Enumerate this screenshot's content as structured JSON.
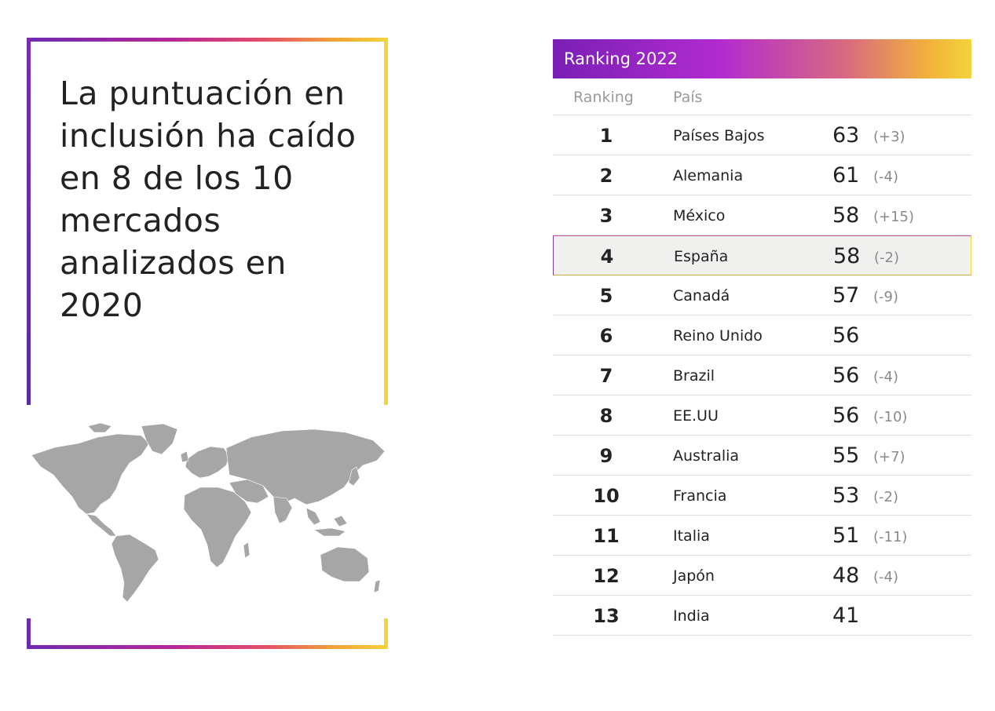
{
  "headline": "La puntuación en inclusión ha caído en 8 de los 10 mercados analizados en 2020",
  "table": {
    "title": "Ranking 2022",
    "col_rank": "Ranking",
    "col_country": "País",
    "rows": [
      {
        "rank": "1",
        "country": "Países Bajos",
        "score": "63",
        "change": "(+3)"
      },
      {
        "rank": "2",
        "country": "Alemania",
        "score": "61",
        "change": "(-4)"
      },
      {
        "rank": "3",
        "country": "México",
        "score": "58",
        "change": "(+15)"
      },
      {
        "rank": "4",
        "country": "España",
        "score": "58",
        "change": "(-2)"
      },
      {
        "rank": "5",
        "country": "Canadá",
        "score": "57",
        "change": "(-9)"
      },
      {
        "rank": "6",
        "country": "Reino Unido",
        "score": "56",
        "change": ""
      },
      {
        "rank": "7",
        "country": "Brazil",
        "score": "56",
        "change": "(-4)"
      },
      {
        "rank": "8",
        "country": "EE.UU",
        "score": "56",
        "change": "(-10)"
      },
      {
        "rank": "9",
        "country": "Australia",
        "score": "55",
        "change": "(+7)"
      },
      {
        "rank": "10",
        "country": "Francia",
        "score": "53",
        "change": "(-2)"
      },
      {
        "rank": "11",
        "country": "Italia",
        "score": "51",
        "change": "(-11)"
      },
      {
        "rank": "12",
        "country": "Japón",
        "score": "48",
        "change": "(-4)"
      },
      {
        "rank": "13",
        "country": "India",
        "score": "41",
        "change": ""
      }
    ]
  },
  "colors": {
    "map": "#a6a6a6",
    "accent_purple": "#7a1fb5",
    "accent_yellow": "#f3d43a"
  }
}
